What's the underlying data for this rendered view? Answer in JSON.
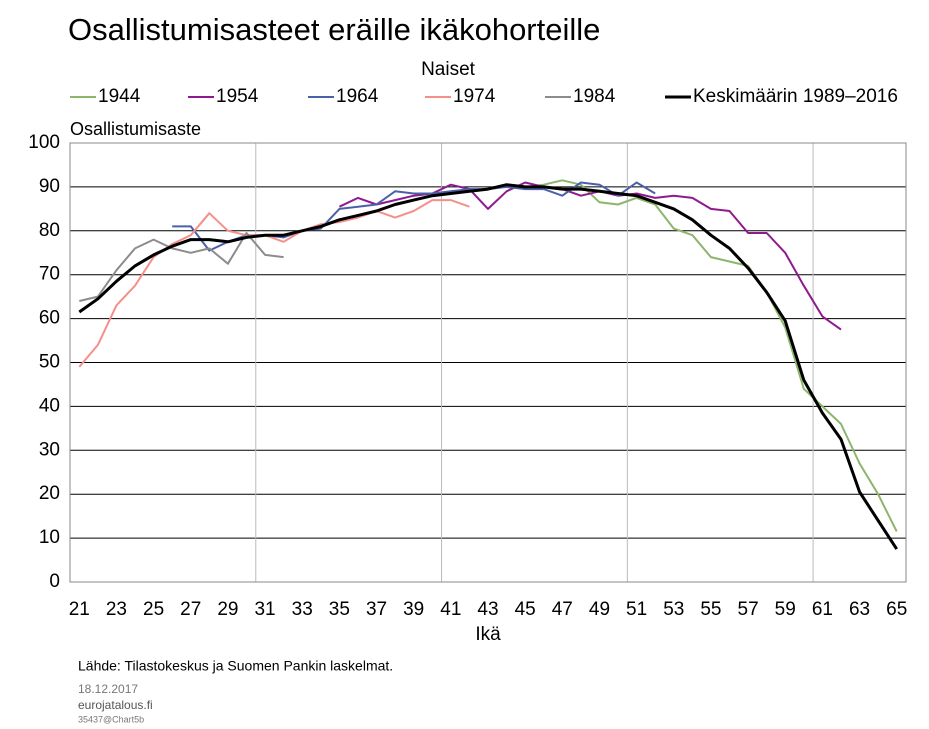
{
  "chart_data": {
    "type": "line",
    "title": "Osallistumisasteet eräille ikäkohorteille",
    "subtitle": "Naiset",
    "y_label": "Osallistumisaste",
    "x_label": "Ikä",
    "source": "Lähde: Tilastokeskus ja Suomen Pankin laskelmat.",
    "date": "18.12.2017",
    "site": "eurojatalous.fi",
    "code": "35437@Chart5b",
    "categories": [
      "21",
      null,
      "23",
      null,
      "25",
      null,
      "27",
      null,
      "29",
      null,
      "31",
      null,
      "33",
      null,
      "35",
      null,
      "37",
      null,
      "39",
      null,
      "41",
      null,
      "43",
      null,
      "45",
      null,
      "47",
      null,
      "49",
      null,
      "51",
      null,
      "53",
      null,
      "55",
      null,
      "57",
      null,
      "59",
      null,
      "61",
      null,
      "63",
      null,
      "65"
    ],
    "ylim": [
      0,
      100
    ],
    "yticks": [
      0,
      10,
      20,
      30,
      40,
      50,
      60,
      70,
      80,
      90,
      100
    ],
    "grid": true,
    "series": [
      {
        "name": "1944",
        "color": "#8db56c",
        "values": [
          null,
          null,
          null,
          null,
          null,
          null,
          null,
          null,
          null,
          null,
          null,
          null,
          null,
          null,
          null,
          null,
          null,
          null,
          null,
          null,
          null,
          null,
          null,
          null,
          90,
          90.5,
          91.5,
          90.5,
          86.5,
          86,
          87.5,
          86,
          80.5,
          79,
          74,
          73,
          72,
          66,
          58,
          44,
          40,
          36,
          27,
          20,
          11.5
        ]
      },
      {
        "name": "1954",
        "color": "#8e1a8e",
        "values": [
          null,
          null,
          null,
          null,
          null,
          null,
          null,
          null,
          null,
          null,
          null,
          null,
          null,
          null,
          85.5,
          87.5,
          86,
          87,
          88,
          88.5,
          90.5,
          89.5,
          85,
          89,
          91,
          90,
          89.5,
          88,
          89,
          88,
          88.5,
          87.5,
          88,
          87.5,
          85,
          84.5,
          79.5,
          79.5,
          75,
          67.5,
          60.5,
          57.5,
          null,
          null,
          null
        ]
      },
      {
        "name": "1964",
        "color": "#4b60aa",
        "values": [
          null,
          null,
          null,
          null,
          null,
          81,
          81,
          75.5,
          77.5,
          79,
          79,
          78.5,
          80,
          80.5,
          85,
          85.5,
          86,
          89,
          88.5,
          88.5,
          89,
          89.5,
          89.5,
          90,
          89.5,
          89.5,
          88,
          91,
          90.5,
          88,
          91,
          88.5,
          null,
          null,
          null,
          null,
          null,
          null,
          null,
          null,
          null,
          null,
          null,
          null,
          null
        ]
      },
      {
        "name": "1974",
        "color": "#f4908a",
        "values": [
          49,
          54,
          63,
          67.5,
          74,
          77,
          79,
          84,
          80,
          79,
          79,
          77.5,
          80,
          81.5,
          82,
          83,
          84.5,
          83,
          84.5,
          87,
          87,
          85.5,
          null,
          null,
          null,
          null,
          null,
          null,
          null,
          null,
          null,
          null,
          null,
          null,
          null,
          null,
          null,
          null,
          null,
          null,
          null,
          null,
          null,
          null,
          null
        ]
      },
      {
        "name": "1984",
        "color": "#8c8c8c",
        "values": [
          64,
          65,
          71,
          76,
          78,
          76,
          75,
          76,
          72.5,
          79.5,
          74.5,
          74,
          null,
          null,
          null,
          null,
          null,
          null,
          null,
          null,
          null,
          null,
          null,
          null,
          null,
          null,
          null,
          null,
          null,
          null,
          null,
          null,
          null,
          null,
          null,
          null,
          null,
          null,
          null,
          null,
          null,
          null,
          null,
          null,
          null
        ]
      },
      {
        "name": "Keskimäärin 1989–2016",
        "color": "#000000",
        "values": [
          61.5,
          64.5,
          68.5,
          72,
          74.5,
          76.5,
          78,
          78,
          77.5,
          78.5,
          79,
          79,
          80,
          81,
          82.5,
          83.5,
          84.5,
          86,
          87,
          88,
          88.5,
          89,
          89.5,
          90.5,
          90,
          90,
          89.5,
          89.5,
          89,
          88.5,
          88,
          86.5,
          85,
          82.5,
          79,
          76,
          71.5,
          66,
          59.5,
          46,
          38.5,
          32.5,
          20.5,
          14,
          7.5
        ]
      }
    ]
  }
}
